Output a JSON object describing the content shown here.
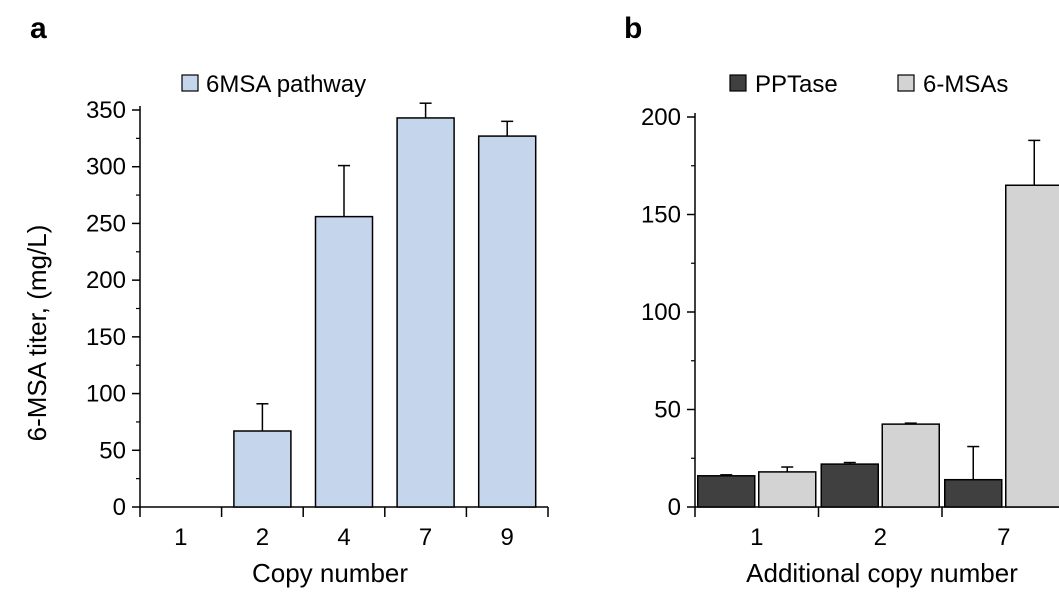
{
  "chart_data": [
    {
      "panel": "a",
      "type": "bar",
      "xlabel": "Copy number",
      "ylabel": "6-MSA titer, (mg/L)",
      "categories": [
        "1",
        "2",
        "4",
        "7",
        "9"
      ],
      "ylim": [
        0,
        350
      ],
      "yticks": [
        0,
        50,
        100,
        150,
        200,
        250,
        300,
        350
      ],
      "legend_position": "top-left",
      "grid": false,
      "series": [
        {
          "name": "6MSA pathway",
          "color": "#c5d6ec",
          "values": [
            0,
            67,
            256,
            343,
            327
          ],
          "errors": [
            0,
            24,
            45,
            13,
            13
          ]
        }
      ]
    },
    {
      "panel": "b",
      "type": "bar",
      "xlabel": "Additional copy number",
      "ylabel": "",
      "categories": [
        "1",
        "2",
        "7"
      ],
      "ylim": [
        0,
        200
      ],
      "yticks": [
        0,
        50,
        100,
        150,
        200
      ],
      "legend_position": "top",
      "grid": false,
      "series": [
        {
          "name": "PPTase",
          "color": "#404040",
          "values": [
            16,
            22,
            14
          ],
          "errors": [
            0.5,
            0.8,
            17
          ]
        },
        {
          "name": "6-MSAs",
          "color": "#d3d3d3",
          "values": [
            18,
            42.5,
            165
          ],
          "errors": [
            2.5,
            0.5,
            23
          ]
        }
      ]
    }
  ]
}
